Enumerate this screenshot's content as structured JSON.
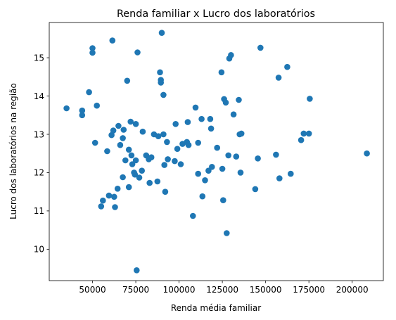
{
  "chart_data": {
    "type": "scatter",
    "title": "Renda familiar x Lucro dos laboratórios",
    "xlabel": "Renda média familiar",
    "ylabel": "Lucro dos laboratórios na região",
    "xlim": [
      25000,
      218000
    ],
    "ylim": [
      9.18,
      15.92
    ],
    "xticks": [
      50000,
      75000,
      100000,
      125000,
      150000,
      175000,
      200000
    ],
    "xtick_labels": [
      "50000",
      "75000",
      "100000",
      "125000",
      "150000",
      "175000",
      "200000"
    ],
    "yticks": [
      10,
      11,
      12,
      13,
      14,
      15
    ],
    "ytick_labels": [
      "10",
      "11",
      "12",
      "13",
      "14",
      "15"
    ],
    "grid": false,
    "marker_color": "#1f77b4",
    "points": [
      {
        "x": 35000,
        "y": 13.68
      },
      {
        "x": 44000,
        "y": 13.62
      },
      {
        "x": 44000,
        "y": 13.5
      },
      {
        "x": 48000,
        "y": 14.1
      },
      {
        "x": 50000,
        "y": 15.25
      },
      {
        "x": 50000,
        "y": 15.13
      },
      {
        "x": 51500,
        "y": 12.78
      },
      {
        "x": 52500,
        "y": 13.75
      },
      {
        "x": 55000,
        "y": 11.12
      },
      {
        "x": 56000,
        "y": 11.27
      },
      {
        "x": 58500,
        "y": 12.56
      },
      {
        "x": 59500,
        "y": 11.4
      },
      {
        "x": 61500,
        "y": 15.45
      },
      {
        "x": 61000,
        "y": 12.98
      },
      {
        "x": 62000,
        "y": 13.1
      },
      {
        "x": 62500,
        "y": 11.37
      },
      {
        "x": 63000,
        "y": 11.1
      },
      {
        "x": 64500,
        "y": 11.58
      },
      {
        "x": 65000,
        "y": 13.22
      },
      {
        "x": 66000,
        "y": 12.72
      },
      {
        "x": 67500,
        "y": 12.9
      },
      {
        "x": 67500,
        "y": 11.88
      },
      {
        "x": 68000,
        "y": 13.12
      },
      {
        "x": 69000,
        "y": 12.32
      },
      {
        "x": 70000,
        "y": 14.4
      },
      {
        "x": 71000,
        "y": 12.6
      },
      {
        "x": 71000,
        "y": 11.62
      },
      {
        "x": 72000,
        "y": 13.33
      },
      {
        "x": 72500,
        "y": 12.45
      },
      {
        "x": 73000,
        "y": 12.22
      },
      {
        "x": 74000,
        "y": 12.0
      },
      {
        "x": 74500,
        "y": 11.95
      },
      {
        "x": 75000,
        "y": 13.27
      },
      {
        "x": 75000,
        "y": 12.32
      },
      {
        "x": 75500,
        "y": 9.45
      },
      {
        "x": 76000,
        "y": 15.14
      },
      {
        "x": 77000,
        "y": 11.87
      },
      {
        "x": 78500,
        "y": 12.05
      },
      {
        "x": 79000,
        "y": 13.07
      },
      {
        "x": 81000,
        "y": 12.45
      },
      {
        "x": 82500,
        "y": 12.35
      },
      {
        "x": 83000,
        "y": 11.73
      },
      {
        "x": 84000,
        "y": 12.4
      },
      {
        "x": 85500,
        "y": 13.0
      },
      {
        "x": 87500,
        "y": 11.77
      },
      {
        "x": 88000,
        "y": 12.95
      },
      {
        "x": 89000,
        "y": 14.62
      },
      {
        "x": 89500,
        "y": 14.42
      },
      {
        "x": 89500,
        "y": 14.35
      },
      {
        "x": 90000,
        "y": 15.65
      },
      {
        "x": 91000,
        "y": 14.03
      },
      {
        "x": 91000,
        "y": 13.0
      },
      {
        "x": 91500,
        "y": 12.2
      },
      {
        "x": 92000,
        "y": 11.5
      },
      {
        "x": 93000,
        "y": 12.8
      },
      {
        "x": 93500,
        "y": 12.35
      },
      {
        "x": 97500,
        "y": 12.3
      },
      {
        "x": 98000,
        "y": 13.27
      },
      {
        "x": 99000,
        "y": 12.62
      },
      {
        "x": 101000,
        "y": 12.22
      },
      {
        "x": 102000,
        "y": 12.75
      },
      {
        "x": 104500,
        "y": 12.8
      },
      {
        "x": 105000,
        "y": 13.32
      },
      {
        "x": 105500,
        "y": 12.72
      },
      {
        "x": 108000,
        "y": 10.87
      },
      {
        "x": 109500,
        "y": 13.7
      },
      {
        "x": 111000,
        "y": 12.78
      },
      {
        "x": 111000,
        "y": 11.97
      },
      {
        "x": 113000,
        "y": 13.4
      },
      {
        "x": 113500,
        "y": 11.38
      },
      {
        "x": 115000,
        "y": 11.8
      },
      {
        "x": 117000,
        "y": 12.05
      },
      {
        "x": 118000,
        "y": 13.4
      },
      {
        "x": 118500,
        "y": 13.15
      },
      {
        "x": 119000,
        "y": 12.15
      },
      {
        "x": 122000,
        "y": 12.65
      },
      {
        "x": 124500,
        "y": 14.62
      },
      {
        "x": 125000,
        "y": 12.1
      },
      {
        "x": 125500,
        "y": 11.28
      },
      {
        "x": 126000,
        "y": 13.92
      },
      {
        "x": 127000,
        "y": 13.83
      },
      {
        "x": 127500,
        "y": 10.42
      },
      {
        "x": 128500,
        "y": 12.45
      },
      {
        "x": 129000,
        "y": 14.98
      },
      {
        "x": 130000,
        "y": 15.07
      },
      {
        "x": 131500,
        "y": 13.52
      },
      {
        "x": 133000,
        "y": 12.42
      },
      {
        "x": 134500,
        "y": 13.9
      },
      {
        "x": 135000,
        "y": 13.0
      },
      {
        "x": 135500,
        "y": 12.0
      },
      {
        "x": 136000,
        "y": 13.02
      },
      {
        "x": 144000,
        "y": 11.57
      },
      {
        "x": 145500,
        "y": 12.37
      },
      {
        "x": 147000,
        "y": 15.26
      },
      {
        "x": 156000,
        "y": 12.47
      },
      {
        "x": 157500,
        "y": 14.48
      },
      {
        "x": 158000,
        "y": 11.85
      },
      {
        "x": 162500,
        "y": 14.76
      },
      {
        "x": 164500,
        "y": 11.97
      },
      {
        "x": 170500,
        "y": 12.85
      },
      {
        "x": 172000,
        "y": 13.02
      },
      {
        "x": 175000,
        "y": 13.02
      },
      {
        "x": 175500,
        "y": 13.93
      },
      {
        "x": 208500,
        "y": 12.5
      }
    ]
  }
}
